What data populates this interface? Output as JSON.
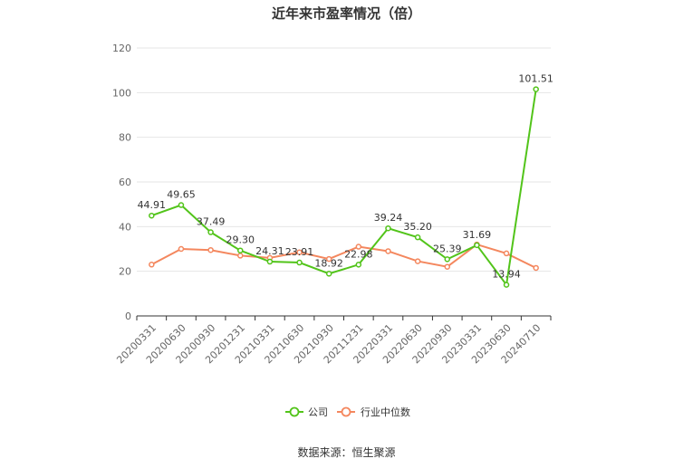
{
  "chart_data": {
    "type": "line",
    "title": "近年来市盈率情况（倍）",
    "xlabel": "",
    "ylabel": "",
    "categories": [
      "20200331",
      "20200630",
      "20200930",
      "20201231",
      "20210331",
      "20210630",
      "20210930",
      "20211231",
      "20220331",
      "20220630",
      "20220930",
      "20230331",
      "20230630",
      "20240710"
    ],
    "ylim": [
      0,
      120
    ],
    "yticks": [
      0,
      20,
      40,
      60,
      80,
      100,
      120
    ],
    "grid": true,
    "legend_position": "bottom",
    "series": [
      {
        "name": "公司",
        "color": "#52c41a",
        "values": [
          44.91,
          49.65,
          37.49,
          29.3,
          24.31,
          23.91,
          18.92,
          22.98,
          39.24,
          35.2,
          25.39,
          31.69,
          13.94,
          101.51
        ],
        "labels": [
          "44.91",
          "49.65",
          "37.49",
          "29.30",
          "24.31",
          "23.91",
          "18.92",
          "22.98",
          "39.24",
          "35.20",
          "25.39",
          "31.69",
          "13.94",
          "101.51"
        ]
      },
      {
        "name": "行业中位数",
        "color": "#f4875e",
        "values": [
          23.0,
          30.0,
          29.5,
          27.0,
          26.0,
          28.5,
          25.5,
          31.0,
          29.0,
          24.5,
          22.0,
          32.0,
          28.0,
          21.5
        ]
      }
    ]
  },
  "source": "数据来源：恒生聚源"
}
